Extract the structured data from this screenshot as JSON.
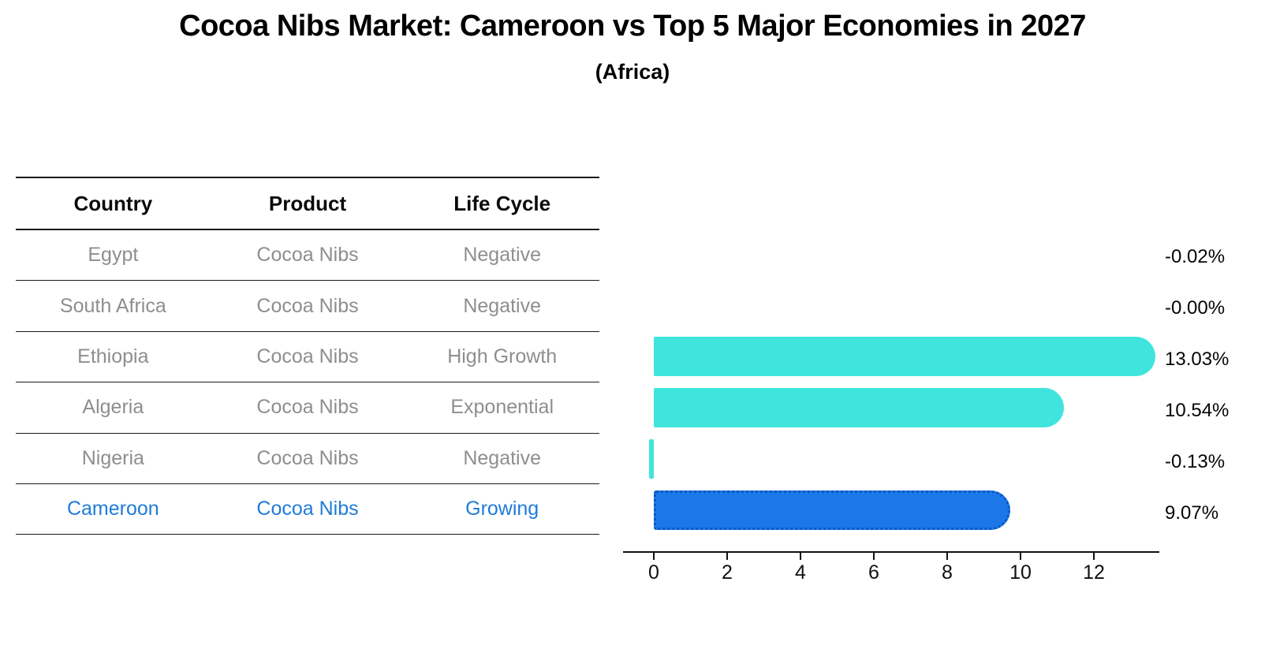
{
  "title": "Cocoa Nibs Market: Cameroon vs Top 5 Major Economies in 2027",
  "subtitle": "(Africa)",
  "table": {
    "headers": [
      "Country",
      "Product",
      "Life Cycle"
    ],
    "rows": [
      {
        "country": "Egypt",
        "product": "Cocoa Nibs",
        "life_cycle": "Negative",
        "highlight": false
      },
      {
        "country": "South Africa",
        "product": "Cocoa Nibs",
        "life_cycle": "Negative",
        "highlight": false
      },
      {
        "country": "Ethiopia",
        "product": "Cocoa Nibs",
        "life_cycle": "High Growth",
        "highlight": false
      },
      {
        "country": "Algeria",
        "product": "Cocoa Nibs",
        "life_cycle": "Exponential",
        "highlight": false
      },
      {
        "country": "Nigeria",
        "product": "Cocoa Nibs",
        "life_cycle": "Negative",
        "highlight": false
      },
      {
        "country": "Cameroon",
        "product": "Cocoa Nibs",
        "life_cycle": "Growing",
        "highlight": true
      }
    ]
  },
  "chart_data": {
    "type": "bar",
    "orientation": "horizontal",
    "title": "Cocoa Nibs Market: Cameroon vs Top 5 Major Economies in 2027",
    "subtitle": "(Africa)",
    "categories": [
      "Egypt",
      "South Africa",
      "Ethiopia",
      "Algeria",
      "Nigeria",
      "Cameroon"
    ],
    "values": [
      -0.02,
      -0.0,
      13.03,
      10.54,
      -0.13,
      9.07
    ],
    "value_labels": [
      "-0.02%",
      "-0.00%",
      "13.03%",
      "10.54%",
      "-0.13%",
      "9.07%"
    ],
    "x_ticks": [
      0,
      2,
      4,
      6,
      8,
      10,
      12
    ],
    "xlim": [
      -0.85,
      13.8
    ],
    "grid": false,
    "legend": null,
    "highlight_index": 5,
    "colors": {
      "bar": "#3FE5DC",
      "highlight_bar": "#1C78E8",
      "highlight_border": "#0A58C0",
      "highlight_text": "#1E7CD9",
      "row_text": "#8E8E8E",
      "axis": "#111111"
    }
  }
}
